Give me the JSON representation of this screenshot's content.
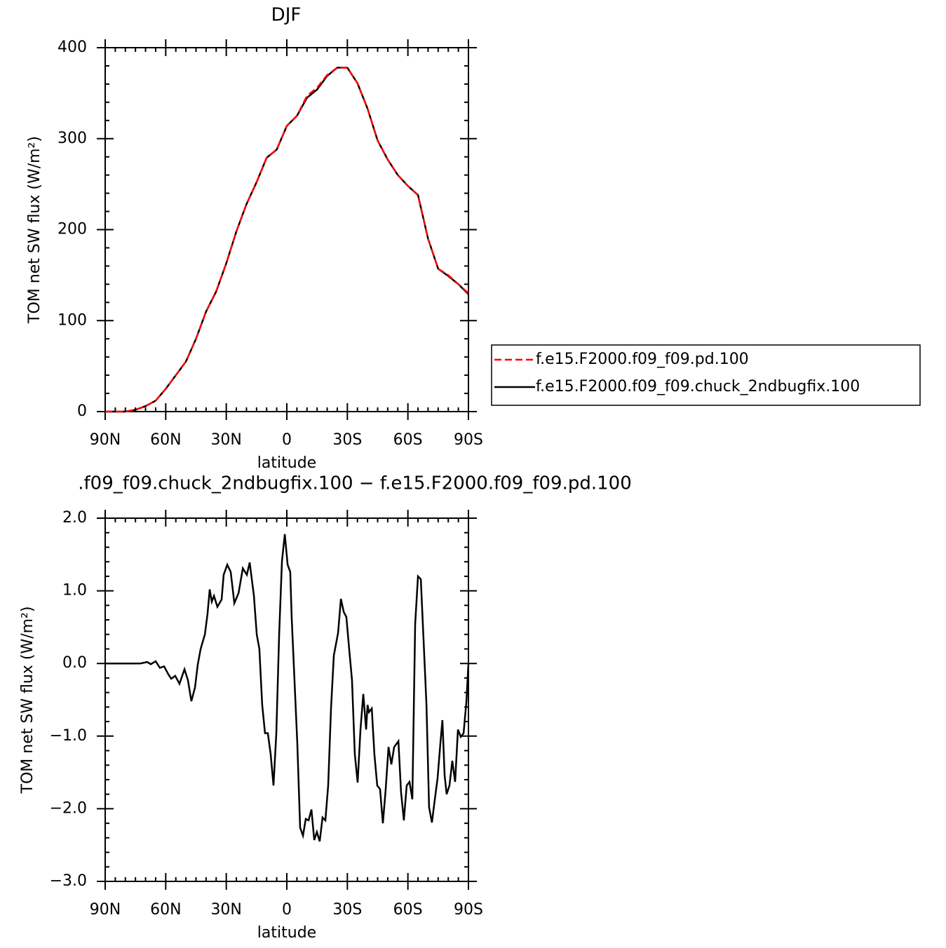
{
  "chart_data": [
    {
      "type": "line",
      "title": "DJF",
      "xlabel": "latitude",
      "ylabel": "TOM net SW flux (W/m²)",
      "x": [
        90,
        85,
        80,
        75,
        70,
        65,
        60,
        55,
        50,
        45,
        40,
        35,
        30,
        25,
        20,
        15,
        10,
        5,
        0,
        -5,
        -10,
        -15,
        -20,
        -25,
        -30,
        -35,
        -40,
        -45,
        -50,
        -55,
        -60,
        -65,
        -70,
        -75,
        -80,
        -85,
        -90
      ],
      "series": [
        {
          "name": "f.e15.F2000.f09_f09.pd.100",
          "color": "#ff0000",
          "line_style": "dashed",
          "values": [
            0,
            0,
            0,
            2,
            6,
            12,
            25,
            40,
            55,
            80,
            110,
            132,
            163,
            198,
            228,
            252,
            279,
            288,
            314,
            325,
            347,
            356,
            370,
            378,
            378,
            361,
            333,
            298,
            277,
            260,
            248,
            238,
            190,
            157,
            150,
            140,
            130
          ]
        },
        {
          "name": "f.e15.F2000.f09_f09.chuck_2ndbugfix.100",
          "color": "#000000",
          "line_style": "solid",
          "values": [
            0,
            0,
            0,
            2,
            6,
            12,
            25,
            40,
            55,
            80,
            110,
            132,
            163,
            198,
            228,
            252,
            279,
            288,
            314,
            325,
            345,
            354,
            369,
            378,
            378,
            361,
            333,
            298,
            277,
            260,
            248,
            238,
            190,
            157,
            149,
            140,
            129
          ]
        }
      ],
      "xlim": [
        90,
        -90
      ],
      "xticks": [
        {
          "value": 90,
          "label": "90N"
        },
        {
          "value": 60,
          "label": "60N"
        },
        {
          "value": 30,
          "label": "30N"
        },
        0,
        {
          "value": -30,
          "label": "30S"
        },
        {
          "value": -60,
          "label": "60S"
        },
        {
          "value": -90,
          "label": "90S"
        }
      ],
      "ylim": [
        0,
        400
      ],
      "yticks": [
        0,
        100,
        200,
        300,
        400
      ],
      "legend": "right"
    },
    {
      "type": "line",
      "title": ".f09_f09.chuck_2ndbugfix.100 − f.e15.F2000.f09_f09.pd.100",
      "xlabel": "latitude",
      "ylabel": "TOM net SW flux (W/m²)",
      "x": [
        90,
        72.6,
        69.2,
        67.4,
        65.0,
        62.9,
        60.8,
        58.7,
        57.3,
        55.3,
        53.2,
        50.7,
        49.0,
        47.3,
        45.5,
        44.1,
        42.7,
        40.6,
        39.3,
        38.2,
        37.2,
        36.1,
        34.4,
        32.3,
        31.3,
        29.5,
        27.8,
        26.0,
        23.9,
        21.8,
        19.8,
        18.4,
        16.3,
        14.9,
        13.6,
        12.2,
        10.8,
        9.4,
        8.0,
        6.6,
        5.2,
        3.8,
        2.4,
        1.0,
        -0.4,
        -1.7,
        -2.4,
        -3.8,
        -5.2,
        -6.6,
        -8.0,
        -9.4,
        -10.8,
        -12.2,
        -13.6,
        -14.9,
        -16.3,
        -17.7,
        -19.1,
        -20.5,
        -21.9,
        -23.3,
        -25.4,
        -26.8,
        -28.2,
        -29.5,
        -30.9,
        -32.3,
        -33.7,
        -35.1,
        -36.5,
        -37.9,
        -39.3,
        -40.0,
        -40.7,
        -42.1,
        -43.4,
        -44.8,
        -46.2,
        -47.6,
        -49.0,
        -50.4,
        -51.8,
        -53.2,
        -55.3,
        -56.6,
        -58.0,
        -59.4,
        -60.8,
        -62.2,
        -63.6,
        -65.0,
        -66.4,
        -67.8,
        -69.2,
        -70.5,
        -71.9,
        -73.3,
        -74.7,
        -76.1,
        -77.1,
        -78.2,
        -79.2,
        -80.6,
        -82.0,
        -83.4,
        -84.8,
        -86.2,
        -87.6,
        -89.0,
        -90
      ],
      "values": [
        0,
        0,
        0.02,
        -0.01,
        0.03,
        -0.06,
        -0.04,
        -0.15,
        -0.21,
        -0.17,
        -0.28,
        -0.08,
        -0.23,
        -0.52,
        -0.33,
        -0.01,
        0.2,
        0.4,
        0.68,
        1.02,
        0.85,
        0.93,
        0.78,
        0.88,
        1.22,
        1.36,
        1.26,
        0.83,
        0.97,
        1.31,
        1.22,
        1.39,
        0.93,
        0.4,
        0.2,
        -0.57,
        -0.96,
        -0.96,
        -1.25,
        -1.68,
        -0.96,
        0.4,
        1.41,
        1.78,
        1.36,
        1.26,
        0.64,
        -0.23,
        -1.1,
        -2.26,
        -2.37,
        -2.14,
        -2.16,
        -2.01,
        -2.43,
        -2.32,
        -2.45,
        -2.12,
        -2.16,
        -1.68,
        -0.62,
        0.11,
        0.42,
        0.89,
        0.71,
        0.64,
        0.2,
        -0.23,
        -1.25,
        -1.64,
        -0.91,
        -0.42,
        -0.91,
        -0.57,
        -0.67,
        -0.62,
        -1.25,
        -1.68,
        -1.73,
        -2.2,
        -1.73,
        -1.15,
        -1.39,
        -1.15,
        -1.07,
        -1.77,
        -2.16,
        -1.68,
        -1.63,
        -1.87,
        0.54,
        1.2,
        1.16,
        0.3,
        -0.57,
        -1.98,
        -2.19,
        -1.88,
        -1.58,
        -1.1,
        -0.78,
        -1.54,
        -1.8,
        -1.68,
        -1.34,
        -1.63,
        -0.91,
        -1.01,
        -0.96,
        -0.52,
        0
      ],
      "color": "#000000",
      "line_style": "solid",
      "xlim": [
        90,
        -90
      ],
      "xticks": [
        {
          "value": 90,
          "label": "90N"
        },
        {
          "value": 60,
          "label": "60N"
        },
        {
          "value": 30,
          "label": "30N"
        },
        0,
        {
          "value": -30,
          "label": "30S"
        },
        {
          "value": -60,
          "label": "60S"
        },
        {
          "value": -90,
          "label": "90S"
        }
      ],
      "ylim": [
        -3,
        2
      ],
      "yticks": [
        {
          "value": -3,
          "label": "−3.0"
        },
        {
          "value": -2,
          "label": "−2.0"
        },
        {
          "value": -1,
          "label": "−1.0"
        },
        {
          "value": 0,
          "label": "0.0"
        },
        {
          "value": 1,
          "label": "1.0"
        },
        {
          "value": 2,
          "label": "2.0"
        }
      ]
    }
  ]
}
